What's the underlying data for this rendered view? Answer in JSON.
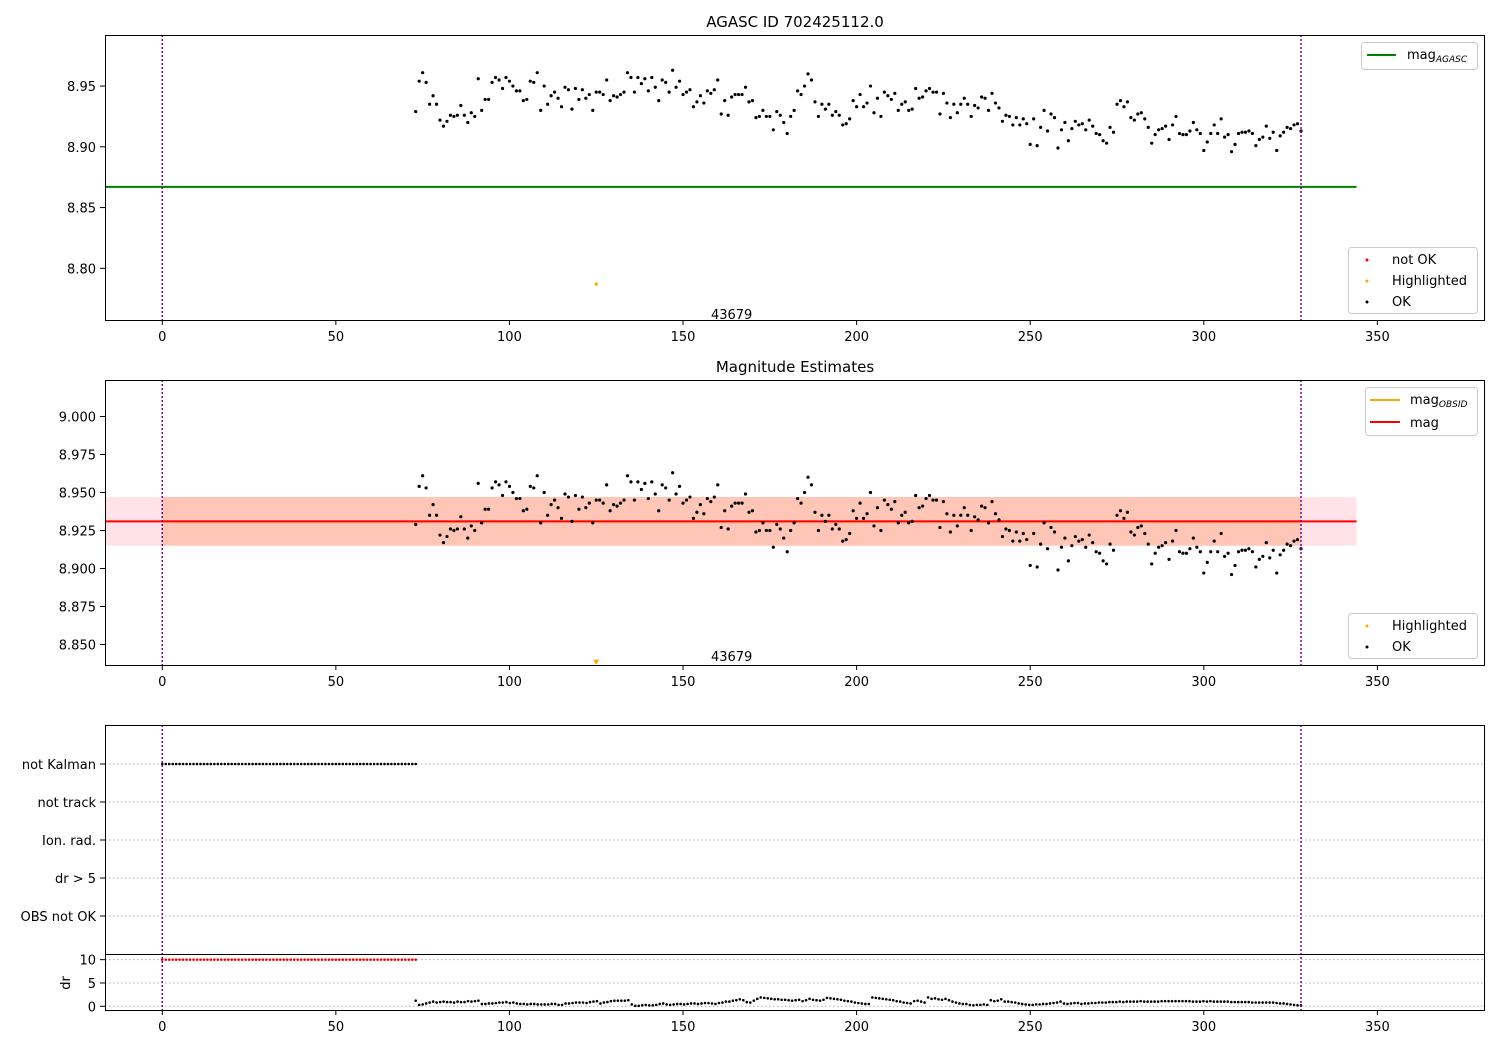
{
  "colors": {
    "agasc_line": "#008000",
    "ok_point": "#000000",
    "highlighted_point": "#ffa500",
    "not_ok_point": "#ff0000",
    "mag_line": "#ff0000",
    "mag_obsid_line": "#ffa500",
    "mag_band_outer": "#ffc0cb",
    "mag_band_inner": "#ffa07a",
    "obs_boundary": "#800080",
    "grid": "#b0b0b0"
  },
  "chart_data": [
    {
      "type": "scatter",
      "title": "AGASC ID 702425112.0",
      "xlim": [
        -16.5,
        381
      ],
      "ylim": [
        8.7575,
        8.992
      ],
      "x_ticks": [
        0,
        50,
        100,
        150,
        200,
        250,
        300,
        350
      ],
      "y_ticks": [
        8.8,
        8.85,
        8.9,
        8.95
      ],
      "y_tick_labels": [
        "8.80",
        "8.85",
        "8.90",
        "8.95"
      ],
      "obs_boundaries": [
        0,
        328
      ],
      "obs_label": {
        "text": "43679",
        "x": 164,
        "y": 8.7625
      },
      "agasc_mag": {
        "value": 8.867,
        "x_range": [
          -16.5,
          344
        ]
      },
      "legend_lines": [
        {
          "label": "mag",
          "subscript": "AGASC"
        }
      ],
      "legend_points": [
        "not OK",
        "Highlighted",
        "OK"
      ],
      "ok_points": {
        "x_start": 73,
        "x_end": 328,
        "values": [
          8.929,
          8.954,
          8.961,
          8.953,
          8.935,
          8.942,
          8.935,
          8.922,
          8.917,
          8.921,
          8.926,
          8.925,
          8.926,
          8.934,
          8.926,
          8.92,
          8.928,
          8.925,
          8.956,
          8.93,
          8.939,
          8.939,
          8.953,
          8.957,
          8.955,
          8.948,
          8.957,
          8.954,
          8.95,
          8.946,
          8.946,
          8.938,
          8.939,
          8.954,
          8.953,
          8.961,
          8.93,
          8.95,
          8.935,
          8.942,
          8.945,
          8.94,
          8.933,
          8.949,
          8.947,
          8.931,
          8.948,
          8.939,
          8.947,
          8.94,
          8.943,
          8.93,
          8.945,
          8.945,
          8.943,
          8.955,
          8.938,
          8.942,
          8.941,
          8.943,
          8.945,
          8.961,
          8.957,
          8.945,
          8.957,
          8.952,
          8.956,
          8.946,
          8.957,
          8.949,
          8.938,
          8.955,
          8.953,
          8.945,
          8.963,
          8.949,
          8.954,
          8.943,
          8.945,
          8.947,
          8.933,
          8.937,
          8.942,
          8.936,
          8.946,
          8.944,
          8.947,
          8.955,
          8.927,
          8.938,
          8.926,
          8.941,
          8.943,
          8.943,
          8.943,
          8.949,
          8.937,
          8.938,
          8.924,
          8.925,
          8.93,
          8.925,
          8.925,
          8.914,
          8.929,
          8.926,
          8.92,
          8.911,
          8.925,
          8.93,
          8.946,
          8.943,
          8.95,
          8.96,
          8.955,
          8.937,
          8.925,
          8.935,
          8.931,
          8.935,
          8.926,
          8.929,
          8.926,
          8.918,
          8.919,
          8.923,
          8.938,
          8.933,
          8.943,
          8.933,
          8.936,
          8.95,
          8.928,
          8.94,
          8.925,
          8.945,
          8.942,
          8.939,
          8.944,
          8.93,
          8.935,
          8.937,
          8.93,
          8.931,
          8.948,
          8.94,
          8.941,
          8.946,
          8.948,
          8.945,
          8.945,
          8.927,
          8.944,
          8.936,
          8.924,
          8.935,
          8.928,
          8.935,
          8.94,
          8.935,
          8.925,
          8.934,
          8.932,
          8.941,
          8.94,
          8.93,
          8.944,
          8.936,
          8.932,
          8.921,
          8.926,
          8.925,
          8.918,
          8.924,
          8.918,
          8.923,
          8.919,
          8.902,
          8.923,
          8.901,
          8.916,
          8.93,
          8.913,
          8.927,
          8.924,
          8.899,
          8.914,
          8.92,
          8.905,
          8.915,
          8.921,
          8.918,
          8.919,
          8.914,
          8.922,
          8.917,
          8.911,
          8.91,
          8.905,
          8.903,
          8.916,
          8.912,
          8.935,
          8.938,
          8.933,
          8.937,
          8.924,
          8.922,
          8.927,
          8.928,
          8.923,
          8.916,
          8.903,
          8.91,
          8.914,
          8.915,
          8.917,
          8.906,
          8.918,
          8.925,
          8.911,
          8.91,
          8.91,
          8.913,
          8.92,
          8.914,
          8.911,
          8.897,
          8.904,
          8.911,
          8.918,
          8.911,
          8.923,
          8.908,
          8.91,
          8.896,
          8.902,
          8.911,
          8.912,
          8.912,
          8.913,
          8.911,
          8.901,
          8.906,
          8.908,
          8.917,
          8.907,
          8.912,
          8.897,
          8.909,
          8.912,
          8.916,
          8.915,
          8.918,
          8.919,
          8.913
        ]
      },
      "highlighted_points": [
        {
          "x": 125,
          "y": 8.787
        }
      ]
    },
    {
      "type": "scatter",
      "title": "Magnitude Estimates",
      "xlim": [
        -16.5,
        381
      ],
      "ylim": [
        8.8365,
        9.024
      ],
      "x_ticks": [
        0,
        50,
        100,
        150,
        200,
        250,
        300,
        350
      ],
      "y_ticks": [
        8.85,
        8.875,
        8.9,
        8.925,
        8.95,
        8.975,
        9.0
      ],
      "y_tick_labels": [
        "8.850",
        "8.875",
        "8.900",
        "8.925",
        "8.950",
        "8.975",
        "9.000"
      ],
      "obs_boundaries": [
        0,
        328
      ],
      "obs_label": {
        "text": "43679",
        "x": 164,
        "y": 8.8425
      },
      "mag": {
        "value": 8.931,
        "band_low": 8.915,
        "band_high": 8.947,
        "x_range": [
          -16.5,
          344
        ]
      },
      "mag_obsid": {
        "value": 8.931,
        "band_low": 8.915,
        "band_high": 8.947,
        "x_range": [
          0,
          328
        ]
      },
      "legend_lines": [
        {
          "label": "mag",
          "subscript": "OBSID"
        },
        {
          "label": "mag",
          "subscript": ""
        }
      ],
      "legend_points": [
        "Highlighted",
        "OK"
      ],
      "ok_points_ref": 0,
      "highlighted_points": [
        {
          "x": 125,
          "y": 8.838
        }
      ]
    },
    {
      "type": "scatter",
      "title": "",
      "xlim": [
        -16.5,
        381
      ],
      "x_ticks": [
        0,
        50,
        100,
        150,
        200,
        250,
        300,
        350
      ],
      "obs_boundaries": [
        0,
        328
      ],
      "flag_rows": [
        "not Kalman",
        "not track",
        "Ion. rad.",
        "dr > 5",
        "OBS not OK"
      ],
      "flag_points": [
        {
          "row": "not Kalman",
          "x_start": 0,
          "x_end": 73
        }
      ],
      "dr_panel": {
        "ylabel": "dr",
        "ylim": [
          -0.8,
          11
        ],
        "y_ticks": [
          0,
          5,
          10
        ],
        "red_points": {
          "x_start": 0,
          "x_end": 73,
          "value": 10
        },
        "black_points": {
          "x_start": 73,
          "x_end": 328,
          "values": [
            1.2,
            0.3,
            0.4,
            0.6,
            0.8,
            1.0,
            0.8,
            0.9,
            1.0,
            0.9,
            0.9,
            0.8,
            1.0,
            0.9,
            0.9,
            1.1,
            1.0,
            1.1,
            1.2,
            0.5,
            0.5,
            0.6,
            0.6,
            0.7,
            0.8,
            0.8,
            0.9,
            0.7,
            0.8,
            0.6,
            0.5,
            0.5,
            0.4,
            0.5,
            0.5,
            0.4,
            0.4,
            0.4,
            0.4,
            0.5,
            0.5,
            0.3,
            0.3,
            0.6,
            0.6,
            0.7,
            0.8,
            0.8,
            0.8,
            0.7,
            0.9,
            1.0,
            1.1,
            0.6,
            0.8,
            0.9,
            1.1,
            1.2,
            1.2,
            1.2,
            1.2,
            1.3,
            0.4,
            0.1,
            0.1,
            0.2,
            0.3,
            0.2,
            0.2,
            0.3,
            0.5,
            0.6,
            0.4,
            0.3,
            0.4,
            0.5,
            0.5,
            0.4,
            0.5,
            0.6,
            0.6,
            0.5,
            0.6,
            0.7,
            0.7,
            0.6,
            0.5,
            0.7,
            0.8,
            1.0,
            1.0,
            1.2,
            1.3,
            1.5,
            1.3,
            0.9,
            0.8,
            1.2,
            1.6,
            1.9,
            1.8,
            1.7,
            1.6,
            1.5,
            1.5,
            1.4,
            1.4,
            1.3,
            1.2,
            1.3,
            1.4,
            1.1,
            1.3,
            1.6,
            1.4,
            1.3,
            1.2,
            1.4,
            1.8,
            1.7,
            1.6,
            1.5,
            1.4,
            1.2,
            1.1,
            1.0,
            0.8,
            0.7,
            0.6,
            0.5,
            0.5,
            1.9,
            1.8,
            1.7,
            1.6,
            1.5,
            1.4,
            1.3,
            1.1,
            1.0,
            0.8,
            0.7,
            0.6,
            1.1,
            1.2,
            1.0,
            0.8,
            1.9,
            1.6,
            1.7,
            1.5,
            1.4,
            1.6,
            1.3,
            1.0,
            0.8,
            0.6,
            0.5,
            0.5,
            0.3,
            0.2,
            0.3,
            0.3,
            0.4,
            0.3,
            1.3,
            1.1,
            1.2,
            1.5,
            1.0,
            1.0,
            0.9,
            0.8,
            0.6,
            0.5,
            0.4,
            0.3,
            0.3,
            0.4,
            0.4,
            0.5,
            0.5,
            0.6,
            0.7,
            0.8,
            1.0,
            0.6,
            0.5,
            0.6,
            0.7,
            0.7,
            0.5,
            0.6,
            0.6,
            0.7,
            0.7,
            0.8,
            0.8,
            0.8,
            0.9,
            0.9,
            0.9,
            1.0,
            0.9,
            1.0,
            1.0,
            1.0,
            1.0,
            1.1,
            1.0,
            1.0,
            1.0,
            1.0,
            1.0,
            1.1,
            1.1,
            1.1,
            1.1,
            1.1,
            1.1,
            1.1,
            1.1,
            1.1,
            1.0,
            1.0,
            1.0,
            1.1,
            1.0,
            1.1,
            1.0,
            1.0,
            1.0,
            1.0,
            1.0,
            0.9,
            0.9,
            0.9,
            0.9,
            0.9,
            0.9,
            0.8,
            0.8,
            0.8,
            0.8,
            0.8,
            0.8,
            0.8,
            0.7,
            0.6,
            0.6,
            0.5,
            0.4,
            0.3,
            0.2,
            0.2
          ]
        }
      }
    }
  ]
}
